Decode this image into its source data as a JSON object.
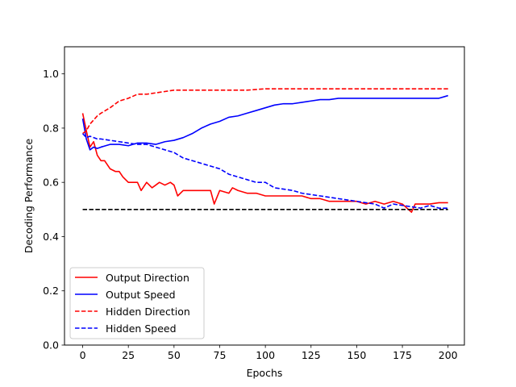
{
  "chart_data": {
    "type": "line",
    "title": "",
    "xlabel": "Epochs",
    "ylabel": "Decoding Performance",
    "xlim": [
      -9.95,
      208.95
    ],
    "ylim": [
      0.0,
      1.1
    ],
    "xticks": [
      0,
      25,
      50,
      75,
      100,
      125,
      150,
      175,
      200
    ],
    "yticks": [
      0.0,
      0.2,
      0.4,
      0.6,
      0.8,
      1.0
    ],
    "ytick_labels": [
      "0.0",
      "0.2",
      "0.4",
      "0.6",
      "0.8",
      "1.0"
    ],
    "grid": false,
    "legend_position": "lower-left",
    "series": [
      {
        "name": "Output Direction",
        "color": "#ff0000",
        "style": "solid",
        "x": [
          0,
          2,
          4,
          6,
          8,
          10,
          12,
          15,
          18,
          20,
          22,
          25,
          28,
          30,
          32,
          35,
          38,
          40,
          42,
          45,
          48,
          50,
          52,
          55,
          58,
          60,
          65,
          70,
          72,
          75,
          80,
          82,
          85,
          90,
          95,
          100,
          105,
          110,
          115,
          120,
          125,
          130,
          135,
          140,
          145,
          150,
          155,
          160,
          165,
          170,
          175,
          180,
          182,
          185,
          190,
          195,
          200
        ],
        "y": [
          0.855,
          0.79,
          0.73,
          0.75,
          0.7,
          0.68,
          0.68,
          0.65,
          0.64,
          0.64,
          0.62,
          0.6,
          0.6,
          0.6,
          0.57,
          0.6,
          0.58,
          0.59,
          0.6,
          0.59,
          0.6,
          0.59,
          0.55,
          0.57,
          0.57,
          0.57,
          0.57,
          0.57,
          0.52,
          0.57,
          0.56,
          0.58,
          0.57,
          0.56,
          0.56,
          0.55,
          0.55,
          0.55,
          0.55,
          0.55,
          0.54,
          0.54,
          0.53,
          0.53,
          0.53,
          0.53,
          0.52,
          0.53,
          0.52,
          0.53,
          0.52,
          0.49,
          0.52,
          0.52,
          0.52,
          0.525,
          0.525
        ]
      },
      {
        "name": "Output Speed",
        "color": "#0000ff",
        "style": "solid",
        "x": [
          0,
          2,
          4,
          6,
          8,
          10,
          15,
          20,
          25,
          30,
          35,
          40,
          45,
          50,
          55,
          60,
          65,
          70,
          75,
          80,
          85,
          90,
          95,
          100,
          105,
          110,
          115,
          120,
          125,
          130,
          135,
          140,
          150,
          160,
          170,
          180,
          190,
          195,
          200
        ],
        "y": [
          0.835,
          0.76,
          0.72,
          0.73,
          0.725,
          0.73,
          0.74,
          0.74,
          0.735,
          0.745,
          0.745,
          0.74,
          0.75,
          0.755,
          0.765,
          0.78,
          0.8,
          0.815,
          0.825,
          0.84,
          0.845,
          0.855,
          0.865,
          0.875,
          0.885,
          0.89,
          0.89,
          0.895,
          0.9,
          0.905,
          0.905,
          0.91,
          0.91,
          0.91,
          0.91,
          0.91,
          0.91,
          0.91,
          0.92
        ]
      },
      {
        "name": "Hidden Direction",
        "color": "#ff0000",
        "style": "dashed",
        "x": [
          0,
          2,
          4,
          6,
          8,
          10,
          15,
          20,
          25,
          30,
          35,
          40,
          45,
          50,
          55,
          60,
          70,
          80,
          90,
          100,
          110,
          120,
          130,
          140,
          150,
          160,
          170,
          180,
          190,
          200
        ],
        "y": [
          0.78,
          0.79,
          0.815,
          0.83,
          0.845,
          0.855,
          0.875,
          0.9,
          0.91,
          0.925,
          0.925,
          0.93,
          0.935,
          0.94,
          0.94,
          0.94,
          0.94,
          0.94,
          0.94,
          0.945,
          0.945,
          0.945,
          0.945,
          0.945,
          0.945,
          0.945,
          0.945,
          0.945,
          0.945,
          0.945
        ]
      },
      {
        "name": "Hidden Speed",
        "color": "#0000ff",
        "style": "dashed",
        "x": [
          0,
          2,
          4,
          6,
          8,
          10,
          15,
          20,
          25,
          30,
          35,
          40,
          45,
          50,
          55,
          60,
          65,
          70,
          75,
          80,
          85,
          90,
          95,
          100,
          105,
          110,
          115,
          120,
          125,
          130,
          135,
          140,
          145,
          150,
          155,
          160,
          165,
          170,
          175,
          180,
          185,
          190,
          195,
          200
        ],
        "y": [
          0.78,
          0.765,
          0.77,
          0.765,
          0.76,
          0.76,
          0.755,
          0.75,
          0.745,
          0.74,
          0.74,
          0.73,
          0.72,
          0.71,
          0.69,
          0.68,
          0.67,
          0.66,
          0.65,
          0.63,
          0.62,
          0.61,
          0.6,
          0.6,
          0.58,
          0.575,
          0.57,
          0.56,
          0.555,
          0.55,
          0.545,
          0.54,
          0.535,
          0.53,
          0.525,
          0.52,
          0.505,
          0.52,
          0.515,
          0.51,
          0.505,
          0.515,
          0.505,
          0.505
        ]
      },
      {
        "name": "",
        "color": "#000000",
        "style": "dashed",
        "x": [
          0,
          200
        ],
        "y": [
          0.5,
          0.5
        ]
      }
    ],
    "legend": [
      {
        "label": "Output Direction",
        "color": "#ff0000",
        "style": "solid"
      },
      {
        "label": "Output Speed",
        "color": "#0000ff",
        "style": "solid"
      },
      {
        "label": "Hidden Direction",
        "color": "#ff0000",
        "style": "dashed"
      },
      {
        "label": "Hidden Speed",
        "color": "#0000ff",
        "style": "dashed"
      }
    ]
  }
}
